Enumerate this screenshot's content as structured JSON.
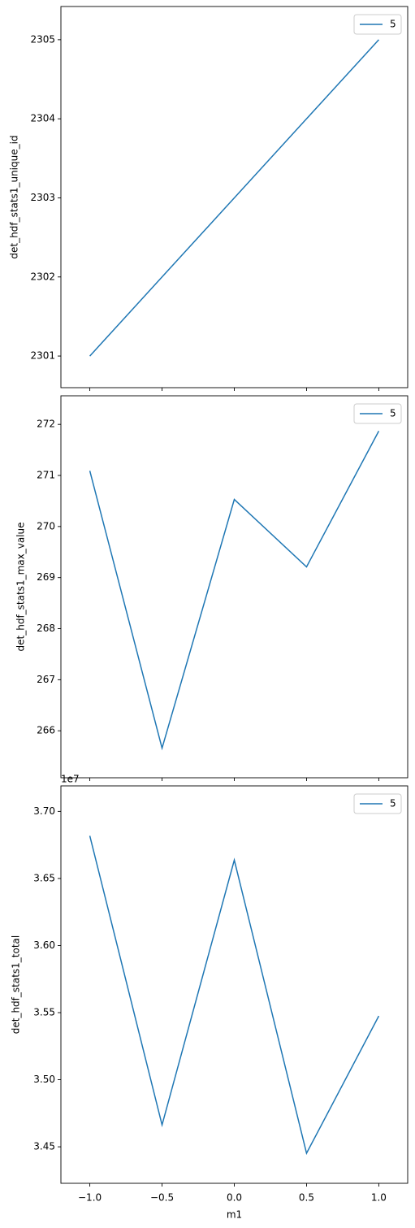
{
  "chart_data": [
    {
      "type": "line",
      "ylabel": "det_hdf_stats1_unique_id",
      "x": [
        -1,
        -0.5,
        0,
        0.5,
        1
      ],
      "series": [
        {
          "name": "5",
          "color": "#1f77b4",
          "values": [
            2301,
            2302,
            2303,
            2304,
            2305
          ]
        }
      ],
      "xlim": [
        -1.2,
        1.2
      ],
      "xticks": [
        -1,
        -0.5,
        0,
        0.5,
        1
      ],
      "ylim": [
        2300.6,
        2305.42
      ],
      "yticks": [
        2301,
        2302,
        2303,
        2304,
        2305
      ],
      "legend": "upper right"
    },
    {
      "type": "line",
      "ylabel": "det_hdf_stats1_max_value",
      "x": [
        -1,
        -0.5,
        0,
        0.5,
        1
      ],
      "series": [
        {
          "name": "5",
          "color": "#1f77b4",
          "values": [
            271.09,
            265.66,
            270.53,
            269.21,
            271.87
          ]
        }
      ],
      "xlim": [
        -1.2,
        1.2
      ],
      "xticks": [
        -1,
        -0.5,
        0,
        0.5,
        1
      ],
      "ylim": [
        265.08,
        272.56
      ],
      "yticks": [
        266,
        267,
        268,
        269,
        270,
        271,
        272
      ],
      "legend": "upper right"
    },
    {
      "type": "line",
      "ylabel": "det_hdf_stats1_total",
      "xlabel": "m1",
      "y_offset_label": "1e7",
      "x": [
        -1,
        -0.5,
        0,
        0.5,
        1
      ],
      "series": [
        {
          "name": "5",
          "color": "#1f77b4",
          "values": [
            3.6818,
            3.4663,
            3.6637,
            3.4452,
            3.5475
          ]
        }
      ],
      "xlim": [
        -1.2,
        1.2
      ],
      "xticks": [
        {
          "value": -1,
          "label": "−1.0"
        },
        {
          "value": -0.5,
          "label": "−0.5"
        },
        {
          "value": 0,
          "label": "0.0"
        },
        0.5,
        {
          "value": 1,
          "label": "1.0"
        }
      ],
      "ylim": [
        3.4228,
        3.719
      ],
      "yticks": [
        3.45,
        {
          "value": 3.5,
          "label": "3.50"
        },
        3.55,
        {
          "value": 3.6,
          "label": "3.60"
        },
        3.65,
        {
          "value": 3.7,
          "label": "3.70"
        }
      ],
      "legend": "upper right"
    }
  ]
}
